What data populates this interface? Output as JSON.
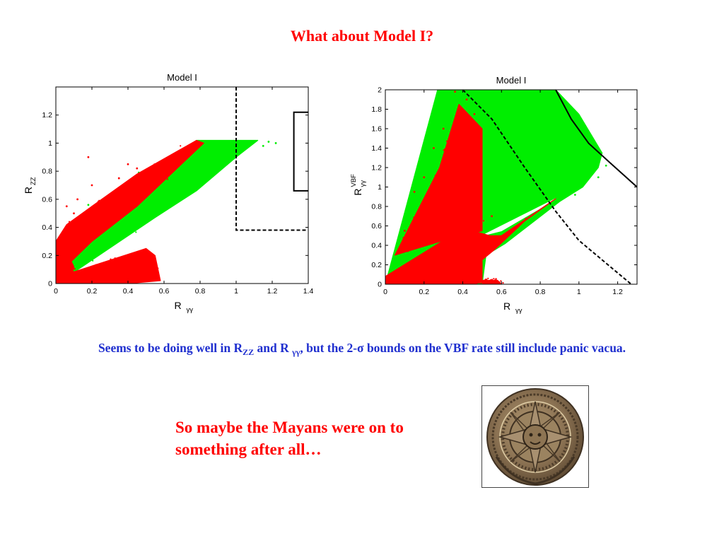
{
  "slide": {
    "title": "What about Model I?",
    "caption": {
      "part1": "Seems to be doing well in R",
      "sub1": "ZZ",
      "part2": " and R ",
      "sub2": "γγ",
      "part3": ", but the 2-σ bounds on the VBF rate still include panic vacua."
    },
    "mayan_line1": "So maybe the Mayans were on to",
    "mayan_line2": "something after all…",
    "image_label": "aztec-calendar-stone"
  },
  "colors": {
    "title": "#ff0000",
    "caption": "#1f2fcf",
    "green": "#00ee00",
    "red": "#ff0000",
    "bound": "#000000"
  },
  "chart_data": [
    {
      "type": "scatter",
      "title": "Model I",
      "xlabel": "R",
      "xlabel_sub": "γγ",
      "ylabel": "R",
      "ylabel_sub": "ZZ",
      "xlim": [
        0,
        1.4
      ],
      "ylim": [
        0,
        1.4
      ],
      "xticks": [
        "0",
        "0.2",
        "0.4",
        "0.6",
        "0.8",
        "1",
        "1.2",
        "1.4"
      ],
      "yticks": [
        "0",
        "0.2",
        "0.4",
        "0.6",
        "0.8",
        "1",
        "1.2"
      ],
      "series": [
        {
          "color": "#00ee00",
          "regions": [
            [
              [
                0.03,
                0.05
              ],
              [
                0.1,
                0.08
              ],
              [
                0.55,
                0.47
              ],
              [
                0.78,
                0.66
              ],
              [
                1.0,
                0.9
              ],
              [
                1.12,
                1.02
              ],
              [
                0.82,
                1.02
              ],
              [
                0.78,
                1.02
              ],
              [
                0.4,
                0.7
              ],
              [
                0.1,
                0.4
              ],
              [
                0.0,
                0.2
              ]
            ]
          ],
          "points": [
            [
              1.22,
              1.0
            ],
            [
              1.15,
              0.98
            ],
            [
              1.18,
              1.01
            ],
            [
              0.46,
              0.79
            ],
            [
              0.28,
              0.58
            ],
            [
              0.18,
              0.56
            ]
          ]
        },
        {
          "color": "#ff0000",
          "regions": [
            [
              [
                0.0,
                0.05
              ],
              [
                0.04,
                0.1
              ],
              [
                0.2,
                0.3
              ],
              [
                0.45,
                0.55
              ],
              [
                0.82,
                1.0
              ],
              [
                0.78,
                1.02
              ],
              [
                0.45,
                0.78
              ],
              [
                0.2,
                0.55
              ],
              [
                0.06,
                0.42
              ],
              [
                0.0,
                0.3
              ]
            ],
            [
              [
                0.02,
                0.05
              ],
              [
                0.5,
                0.25
              ],
              [
                0.55,
                0.2
              ],
              [
                0.58,
                0.02
              ],
              [
                0.4,
                0.0
              ],
              [
                0.02,
                0.0
              ]
            ],
            [
              [
                0.0,
                0.0
              ],
              [
                0.08,
                0.0
              ],
              [
                0.1,
                0.12
              ],
              [
                0.05,
                0.25
              ],
              [
                0.0,
                0.3
              ]
            ]
          ],
          "points": [
            [
              0.18,
              0.9
            ],
            [
              0.12,
              0.6
            ],
            [
              0.4,
              0.85
            ],
            [
              0.26,
              0.6
            ],
            [
              0.2,
              0.7
            ],
            [
              0.06,
              0.55
            ],
            [
              0.35,
              0.75
            ],
            [
              0.45,
              0.82
            ],
            [
              0.1,
              0.5
            ]
          ]
        }
      ],
      "bounds": [
        {
          "style": "dashed",
          "points": [
            [
              1.0,
              1.4
            ],
            [
              1.0,
              0.38
            ],
            [
              1.4,
              0.38
            ]
          ]
        },
        {
          "style": "solid",
          "points": [
            [
              1.4,
              1.22
            ],
            [
              1.32,
              1.22
            ],
            [
              1.32,
              0.66
            ],
            [
              1.4,
              0.66
            ]
          ]
        }
      ]
    },
    {
      "type": "scatter",
      "title": "Model I",
      "xlabel": "R",
      "xlabel_sub": "γγ",
      "ylabel": "R",
      "ylabel_sub": "γγ",
      "ylabel_sup": "VBF",
      "xlim": [
        0,
        1.3
      ],
      "ylim": [
        0,
        2
      ],
      "xticks": [
        "0",
        "0.2",
        "0.4",
        "0.6",
        "0.8",
        "1",
        "1.2"
      ],
      "yticks": [
        "0",
        "0.2",
        "0.4",
        "0.6",
        "0.8",
        "1",
        "1.2",
        "1.4",
        "1.6",
        "1.8",
        "2"
      ],
      "series": [
        {
          "color": "#00ee00",
          "regions": [
            [
              [
                0.0,
                0.0
              ],
              [
                0.27,
                2.0
              ],
              [
                0.88,
                2.0
              ],
              [
                1.0,
                1.75
              ],
              [
                1.12,
                1.35
              ],
              [
                1.1,
                1.2
              ],
              [
                1.02,
                1.0
              ],
              [
                0.9,
                0.85
              ],
              [
                0.62,
                0.42
              ],
              [
                0.52,
                0.3
              ],
              [
                0.5,
                0.0
              ]
            ]
          ],
          "points": [
            [
              1.14,
              1.22
            ],
            [
              1.08,
              1.3
            ],
            [
              1.1,
              1.1
            ],
            [
              0.98,
              0.92
            ]
          ]
        },
        {
          "color": "#ffffff",
          "regions": [
            [
              [
                0.5,
                0.5
              ],
              [
                0.88,
                0.88
              ],
              [
                0.85,
                0.84
              ],
              [
                0.6,
                0.55
              ]
            ]
          ],
          "points": []
        },
        {
          "color": "#ff0000",
          "regions": [
            [
              [
                0.0,
                0.0
              ],
              [
                0.0,
                0.08
              ],
              [
                0.3,
                0.45
              ],
              [
                0.45,
                0.55
              ],
              [
                0.54,
                0.5
              ],
              [
                0.6,
                0.5
              ],
              [
                0.88,
                0.88
              ],
              [
                0.72,
                0.65
              ],
              [
                0.56,
                0.35
              ],
              [
                0.5,
                0.25
              ],
              [
                0.5,
                0.02
              ],
              [
                0.45,
                0.0
              ]
            ],
            [
              [
                0.05,
                0.3
              ],
              [
                0.28,
                1.2
              ],
              [
                0.38,
                1.85
              ],
              [
                0.5,
                1.6
              ],
              [
                0.5,
                0.55
              ],
              [
                0.3,
                0.45
              ]
            ],
            [
              [
                0.5,
                0.0
              ],
              [
                0.6,
                0.0
              ],
              [
                0.58,
                0.04
              ],
              [
                0.5,
                0.04
              ]
            ]
          ],
          "points": [
            [
              0.36,
              1.98
            ],
            [
              0.42,
              1.9
            ],
            [
              0.25,
              1.4
            ],
            [
              0.2,
              1.1
            ],
            [
              0.15,
              0.95
            ],
            [
              0.46,
              1.75
            ],
            [
              0.3,
              1.6
            ],
            [
              0.1,
              0.55
            ],
            [
              0.45,
              1.2
            ],
            [
              0.55,
              0.7
            ]
          ]
        }
      ],
      "bounds": [
        {
          "style": "dashed",
          "points": [
            [
              0.4,
              2.0
            ],
            [
              0.55,
              1.7
            ],
            [
              0.72,
              1.2
            ],
            [
              0.88,
              0.75
            ],
            [
              1.0,
              0.45
            ],
            [
              1.15,
              0.2
            ],
            [
              1.27,
              0.0
            ]
          ]
        },
        {
          "style": "solid",
          "points": [
            [
              0.88,
              2.0
            ],
            [
              0.96,
              1.7
            ],
            [
              1.05,
              1.45
            ],
            [
              1.16,
              1.25
            ],
            [
              1.3,
              1.0
            ]
          ]
        }
      ]
    }
  ]
}
